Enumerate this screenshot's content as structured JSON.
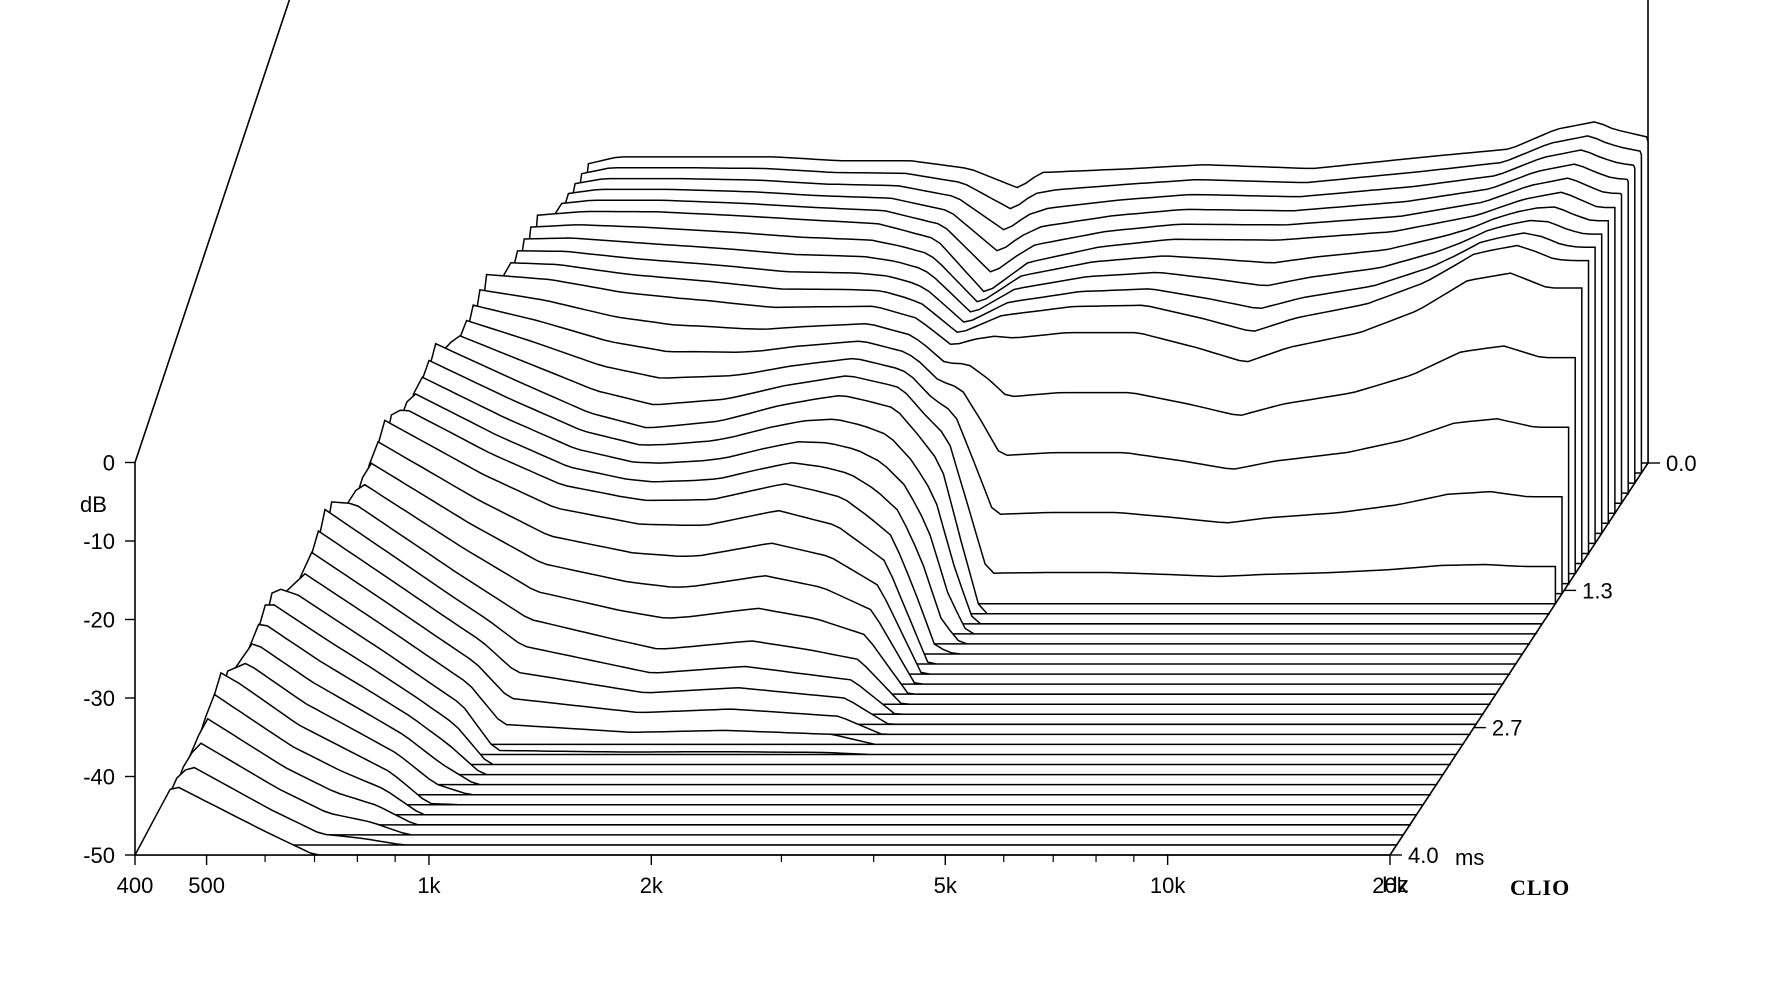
{
  "chart_data": {
    "type": "waterfall",
    "title": "",
    "x_unit_label": "Hz",
    "y_unit_label": "dB",
    "z_unit_label": "ms",
    "x_scale": "log",
    "xlim": [
      400,
      20000
    ],
    "ylim": [
      -50,
      0
    ],
    "zlim": [
      0.0,
      4.0
    ],
    "x_ticks": [
      {
        "value": 400,
        "label": "400"
      },
      {
        "value": 500,
        "label": "500"
      },
      {
        "value": 1000,
        "label": "1k"
      },
      {
        "value": 2000,
        "label": "2k"
      },
      {
        "value": 5000,
        "label": "5k"
      },
      {
        "value": 10000,
        "label": "10k"
      },
      {
        "value": 20000,
        "label": "20k"
      }
    ],
    "x_minor_ticks": [
      600,
      700,
      800,
      900,
      3000,
      4000,
      6000,
      7000,
      8000,
      9000
    ],
    "y_ticks": [
      {
        "value": 0,
        "label": "0"
      },
      {
        "value": -10,
        "label": "-10"
      },
      {
        "value": -20,
        "label": "-20"
      },
      {
        "value": -30,
        "label": "-30"
      },
      {
        "value": -40,
        "label": "-40"
      },
      {
        "value": -50,
        "label": "-50"
      }
    ],
    "z_ticks": [
      {
        "value": 0.0,
        "label": "0.0"
      },
      {
        "value": 1.3,
        "label": "1.3"
      },
      {
        "value": 2.7,
        "label": "2.7"
      },
      {
        "value": 4.0,
        "label": "4.0"
      }
    ],
    "slice_count": 40,
    "series": [
      {
        "time": 0.0,
        "points": [
          [
            680,
            -50
          ],
          [
            720,
            -12
          ],
          [
            800,
            -11
          ],
          [
            1000,
            -11
          ],
          [
            1300,
            -11
          ],
          [
            1600,
            -11.5
          ],
          [
            2000,
            -11.5
          ],
          [
            2400,
            -12.5
          ],
          [
            2800,
            -15
          ],
          [
            3000,
            -13
          ],
          [
            4000,
            -12.5
          ],
          [
            5000,
            -12
          ],
          [
            7000,
            -12.5
          ],
          [
            10000,
            -11
          ],
          [
            13000,
            -10
          ],
          [
            15000,
            -7.5
          ],
          [
            17000,
            -6.5
          ],
          [
            18000,
            -7.5
          ],
          [
            20000,
            -8.5
          ],
          [
            23000,
            -12
          ],
          [
            26000,
            -15
          ],
          [
            28000,
            -25
          ],
          [
            30000,
            -50
          ]
        ]
      },
      {
        "time": 0.5,
        "points": [
          [
            640,
            -50
          ],
          [
            690,
            -12
          ],
          [
            800,
            -11.5
          ],
          [
            1000,
            -11.5
          ],
          [
            1300,
            -12
          ],
          [
            1600,
            -12.5
          ],
          [
            2000,
            -13
          ],
          [
            2400,
            -15
          ],
          [
            2800,
            -22
          ],
          [
            3200,
            -18
          ],
          [
            4000,
            -16
          ],
          [
            5000,
            -15
          ],
          [
            7000,
            -15
          ],
          [
            10000,
            -14
          ],
          [
            13000,
            -12
          ],
          [
            15000,
            -10
          ],
          [
            17000,
            -9
          ],
          [
            19000,
            -11
          ],
          [
            22000,
            -11
          ],
          [
            26000,
            -20
          ],
          [
            30000,
            -50
          ]
        ]
      },
      {
        "time": 1.0,
        "points": [
          [
            600,
            -50
          ],
          [
            650,
            -13
          ],
          [
            800,
            -13.5
          ],
          [
            1000,
            -15
          ],
          [
            1300,
            -16
          ],
          [
            1600,
            -17
          ],
          [
            1800,
            -17
          ],
          [
            2200,
            -17
          ],
          [
            2500,
            -18.5
          ],
          [
            2800,
            -22
          ],
          [
            3200,
            -20
          ],
          [
            4000,
            -19
          ],
          [
            5000,
            -19
          ],
          [
            6000,
            -21
          ],
          [
            7000,
            -23
          ],
          [
            8000,
            -21
          ],
          [
            10000,
            -19
          ],
          [
            12000,
            -16
          ],
          [
            14000,
            -12
          ],
          [
            16000,
            -11
          ],
          [
            18000,
            -13
          ],
          [
            21000,
            -13
          ],
          [
            24000,
            -18
          ],
          [
            28000,
            -50
          ]
        ]
      },
      {
        "time": 1.5,
        "points": [
          [
            560,
            -50
          ],
          [
            610,
            -15
          ],
          [
            800,
            -20
          ],
          [
            1000,
            -24
          ],
          [
            1200,
            -26
          ],
          [
            1500,
            -25
          ],
          [
            1800,
            -23
          ],
          [
            2200,
            -21.5
          ],
          [
            2600,
            -23
          ],
          [
            3000,
            -30
          ],
          [
            3400,
            -50
          ]
        ]
      },
      {
        "time": 2.0,
        "points": [
          [
            520,
            -50
          ],
          [
            580,
            -18
          ],
          [
            800,
            -25
          ],
          [
            1000,
            -29
          ],
          [
            1300,
            -31
          ],
          [
            1600,
            -31
          ],
          [
            2000,
            -29
          ],
          [
            2400,
            -31
          ],
          [
            2800,
            -36
          ],
          [
            3200,
            -50
          ]
        ]
      },
      {
        "time": 2.5,
        "points": [
          [
            480,
            -50
          ],
          [
            540,
            -23
          ],
          [
            800,
            -34
          ],
          [
            1000,
            -40
          ],
          [
            1500,
            -44
          ],
          [
            2000,
            -43
          ],
          [
            2800,
            -45
          ],
          [
            3200,
            -50
          ]
        ]
      },
      {
        "time": 3.0,
        "points": [
          [
            440,
            -50
          ],
          [
            500,
            -28
          ],
          [
            700,
            -37
          ],
          [
            900,
            -44
          ],
          [
            1000,
            -50
          ]
        ]
      },
      {
        "time": 3.5,
        "points": [
          [
            420,
            -50
          ],
          [
            470,
            -33
          ],
          [
            600,
            -40
          ],
          [
            800,
            -46
          ],
          [
            900,
            -50
          ]
        ]
      },
      {
        "time": 4.0,
        "points": [
          [
            400,
            -50
          ],
          [
            450,
            -41
          ],
          [
            600,
            -47
          ],
          [
            700,
            -50
          ]
        ]
      }
    ],
    "brand_text": "CLIO",
    "grid": false,
    "legend": "none"
  }
}
